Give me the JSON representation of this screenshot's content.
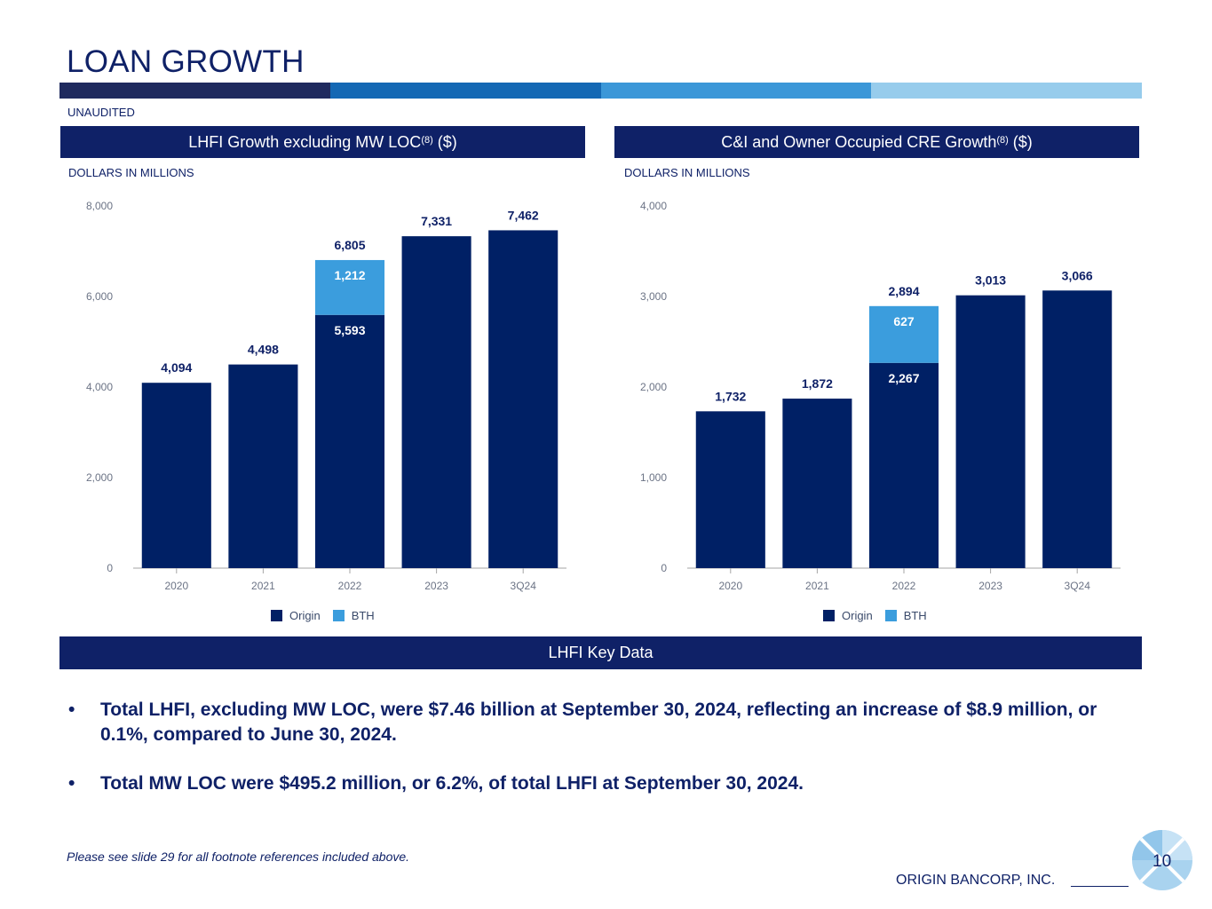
{
  "title": "LOAN GROWTH",
  "unaudited": "UNAUDITED",
  "brand_colors": [
    "#1f2a5e",
    "#1468b4",
    "#3b97d8",
    "#97ccec"
  ],
  "left_panel": {
    "title": "LHFI Growth excluding MW LOC",
    "superscript": "(8)",
    "unit_suffix": " ($)",
    "units": "DOLLARS IN MILLIONS"
  },
  "right_panel": {
    "title": "C&I and Owner Occupied CRE Growth",
    "superscript": "(8)",
    "unit_suffix": " ($)",
    "units": "DOLLARS IN MILLIONS"
  },
  "legend": {
    "origin": "Origin",
    "bth": "BTH"
  },
  "chart_data": [
    {
      "type": "bar",
      "stacked": true,
      "categories": [
        "2020",
        "2021",
        "2022",
        "2023",
        "3Q24"
      ],
      "series": [
        {
          "name": "Origin",
          "color": "#002065",
          "values": [
            4094,
            4498,
            5593,
            7331,
            7462
          ]
        },
        {
          "name": "BTH",
          "color": "#3b9ddd",
          "values": [
            0,
            0,
            1212,
            0,
            0
          ]
        }
      ],
      "totals": [
        4094,
        4498,
        6805,
        7331,
        7462
      ],
      "segment_labels": {
        "2022": [
          "5,593",
          "1,212"
        ]
      },
      "total_labels": [
        "4,094",
        "4,498",
        "6,805",
        "7,331",
        "7,462"
      ],
      "ylim": [
        0,
        8000
      ],
      "yticks": [
        "0",
        "2,000",
        "4,000",
        "6,000",
        "8,000"
      ],
      "ytick_values": [
        0,
        2000,
        4000,
        6000,
        8000
      ],
      "legend_position": "bottom"
    },
    {
      "type": "bar",
      "stacked": true,
      "categories": [
        "2020",
        "2021",
        "2022",
        "2023",
        "3Q24"
      ],
      "series": [
        {
          "name": "Origin",
          "color": "#002065",
          "values": [
            1732,
            1872,
            2267,
            3013,
            3066
          ]
        },
        {
          "name": "BTH",
          "color": "#3b9ddd",
          "values": [
            0,
            0,
            627,
            0,
            0
          ]
        }
      ],
      "totals": [
        1732,
        1872,
        2894,
        3013,
        3066
      ],
      "segment_labels": {
        "2022": [
          "2,267",
          "627"
        ]
      },
      "total_labels": [
        "1,732",
        "1,872",
        "2,894",
        "3,013",
        "3,066"
      ],
      "ylim": [
        0,
        4000
      ],
      "yticks": [
        "0",
        "1,000",
        "2,000",
        "3,000",
        "4,000"
      ],
      "ytick_values": [
        0,
        1000,
        2000,
        3000,
        4000
      ],
      "legend_position": "bottom"
    }
  ],
  "key_data_header": "LHFI Key Data",
  "bullets": [
    "Total LHFI, excluding MW LOC, were $7.46 billion at September 30, 2024, reflecting an increase of $8.9 million, or 0.1%, compared to June 30, 2024.",
    "Total MW LOC were $495.2 million, or 6.2%, of total LHFI at September 30, 2024."
  ],
  "bullet_symbol": "•",
  "footnote": "Please see slide 29 for all footnote references included above.",
  "company": "ORIGIN BANCORP, INC.",
  "page_number": "10"
}
